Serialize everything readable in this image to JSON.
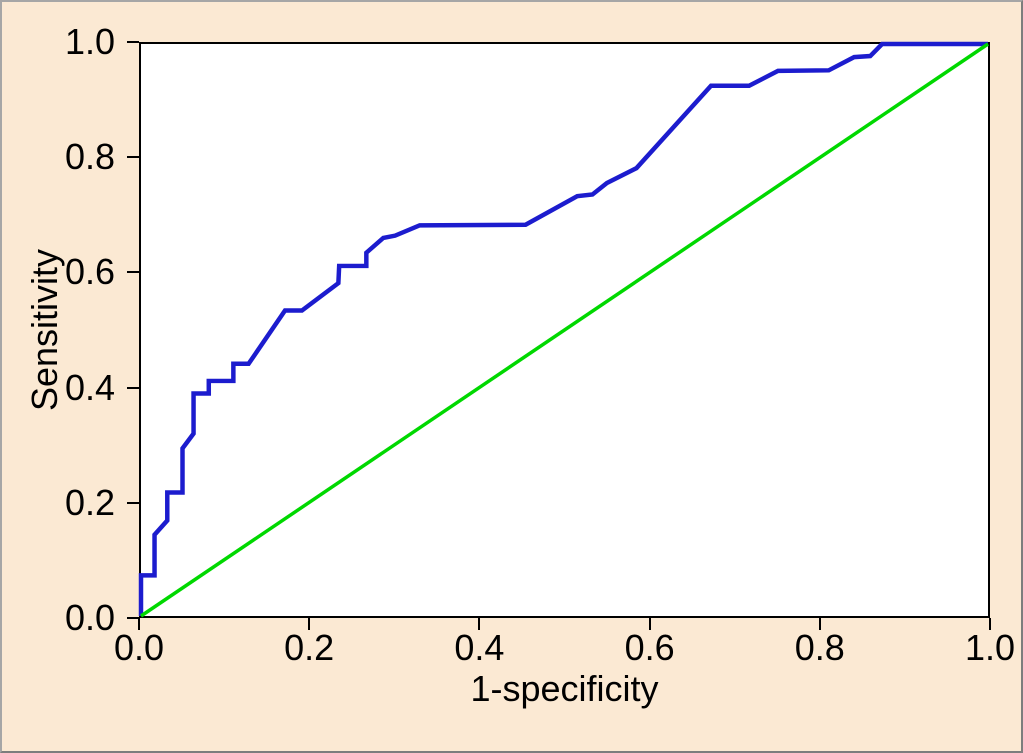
{
  "window": {
    "background_color": "#FBE9D3",
    "plot_background_color": "#FFFFFF",
    "axis_color": "#000000",
    "frame_border_color": "#8C8C8C"
  },
  "chart_data": {
    "type": "line",
    "title": "",
    "xlabel": "1-specificity",
    "ylabel": "Sensitivity",
    "xlim": [
      0,
      1
    ],
    "ylim": [
      0,
      1
    ],
    "x_tick_labels": [
      "0.0",
      "0.2",
      "0.4",
      "0.6",
      "0.8",
      "1.0"
    ],
    "y_tick_labels": [
      "0.0",
      "0.2",
      "0.4",
      "0.6",
      "0.8",
      "1.0"
    ],
    "grid": false,
    "legend": "none",
    "series": [
      {
        "name": "roc-curve",
        "color": "#1C1CCE",
        "points": [
          [
            0.0,
            0.0
          ],
          [
            0.0,
            0.071
          ],
          [
            0.016,
            0.071
          ],
          [
            0.016,
            0.142
          ],
          [
            0.031,
            0.167
          ],
          [
            0.031,
            0.216
          ],
          [
            0.049,
            0.216
          ],
          [
            0.049,
            0.293
          ],
          [
            0.062,
            0.319
          ],
          [
            0.062,
            0.389
          ],
          [
            0.08,
            0.389
          ],
          [
            0.08,
            0.411
          ],
          [
            0.109,
            0.411
          ],
          [
            0.109,
            0.441
          ],
          [
            0.127,
            0.441
          ],
          [
            0.17,
            0.534
          ],
          [
            0.19,
            0.534
          ],
          [
            0.233,
            0.582
          ],
          [
            0.234,
            0.612
          ],
          [
            0.266,
            0.612
          ],
          [
            0.266,
            0.635
          ],
          [
            0.286,
            0.661
          ],
          [
            0.3,
            0.665
          ],
          [
            0.329,
            0.683
          ],
          [
            0.454,
            0.684
          ],
          [
            0.515,
            0.734
          ],
          [
            0.533,
            0.737
          ],
          [
            0.55,
            0.757
          ],
          [
            0.585,
            0.783
          ],
          [
            0.673,
            0.927
          ],
          [
            0.718,
            0.927
          ],
          [
            0.752,
            0.953
          ],
          [
            0.812,
            0.954
          ],
          [
            0.842,
            0.977
          ],
          [
            0.861,
            0.979
          ],
          [
            0.875,
            1.0
          ],
          [
            1.0,
            1.0
          ]
        ]
      },
      {
        "name": "reference-diagonal",
        "color": "#00D800",
        "points": [
          [
            0.0,
            0.0
          ],
          [
            1.0,
            1.0
          ]
        ]
      }
    ]
  }
}
